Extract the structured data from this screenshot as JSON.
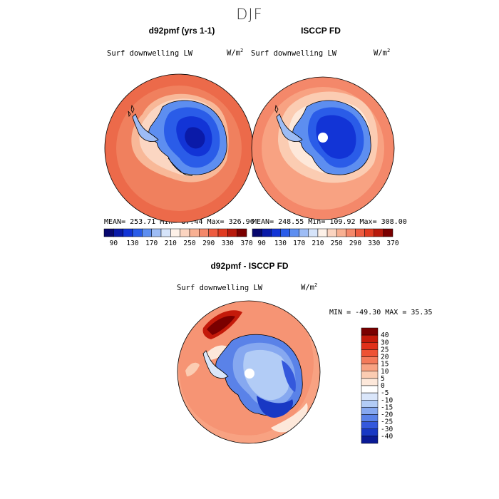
{
  "figure": {
    "title": "DJF"
  },
  "panels": [
    {
      "title": "d92pmf (yrs 1-1)",
      "variable": "Surf downwelling LW",
      "units": "W/m",
      "units_sup": "2",
      "stats": "MEAN= 253.71  Min=  87.44  Max= 326.96"
    },
    {
      "title": "ISCCP FD",
      "variable": "Surf downwelling LW",
      "units": "W/m",
      "units_sup": "2",
      "stats": "MEAN= 248.55  Min= 109.92  Max= 308.00"
    },
    {
      "title": "d92pmf - ISCCP FD",
      "variable": "Surf downwelling LW",
      "units": "W/m",
      "units_sup": "2",
      "stats": "MIN = -49.30 MAX =  35.35"
    }
  ],
  "colorbar_abs": {
    "ticks": [
      "90",
      "130",
      "170",
      "210",
      "250",
      "290",
      "330",
      "370"
    ],
    "colors": [
      "#08086e",
      "#0a1aa8",
      "#1234d6",
      "#2a5ce8",
      "#5d8ef0",
      "#9dbcf5",
      "#d6e4fa",
      "#fdf1e8",
      "#fbd4c0",
      "#f8b092",
      "#f4886a",
      "#ee5c40",
      "#e03a20",
      "#b81a0c",
      "#7a0000"
    ]
  },
  "colorbar_diff": {
    "labels": [
      "40",
      "30",
      "25",
      "20",
      "15",
      "10",
      "5",
      "0",
      "-5",
      "-10",
      "-15",
      "-20",
      "-25",
      "-30",
      "-40"
    ],
    "colors": [
      "#7a0000",
      "#c41a0a",
      "#e0301a",
      "#ee5234",
      "#f47a5a",
      "#f8a282",
      "#fbccb2",
      "#fde8da",
      "#ffffff",
      "#dae6fa",
      "#b2ccf6",
      "#86a8f0",
      "#5a82e8",
      "#3458dc",
      "#1838c4",
      "#0a1a96"
    ]
  }
}
